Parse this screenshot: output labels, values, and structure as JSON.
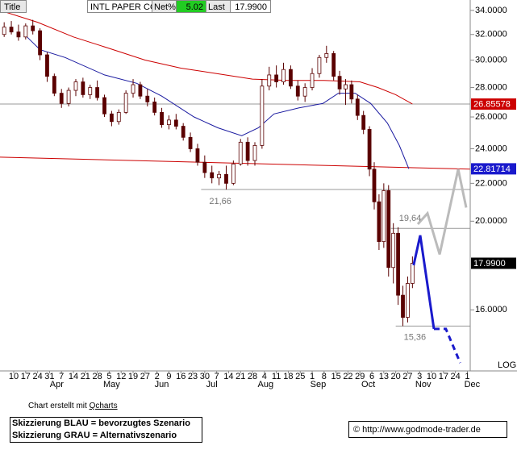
{
  "header": {
    "title": "Title",
    "name": "INTL PAPER CO",
    "net_label": "Net%",
    "net_value": "5.02",
    "last_label": "Last",
    "last_value": "17.9900"
  },
  "footer": {
    "credit": "Chart erstellt mit ",
    "credit_link": "Qcharts",
    "legend": [
      "Skizzierung BLAU = bevorzugtes Szenario",
      "Skizzierung GRAU = Alternativszenario"
    ],
    "copyright": "© http://www.godmode-trader.de"
  },
  "chart_data": {
    "type": "candlestick",
    "log": true,
    "log_label": "LOG",
    "xlim": [
      -1.15,
      38.24
    ],
    "ylim": [
      13.72,
      34.9
    ],
    "yticks": [
      {
        "value": 34,
        "label": "34.0000"
      },
      {
        "value": 32,
        "label": "32.0000"
      },
      {
        "value": 30,
        "label": "30.0000"
      },
      {
        "value": 28,
        "label": "28.0000"
      },
      {
        "value": 26,
        "label": "26.0000"
      },
      {
        "value": 24,
        "label": "24.0000"
      },
      {
        "value": 22,
        "label": "22.0000"
      },
      {
        "value": 20,
        "label": "20.0000"
      },
      {
        "value": 16,
        "label": "16.0000"
      }
    ],
    "xticks": [
      {
        "value": 0,
        "label": "10"
      },
      {
        "value": 1,
        "label": "17"
      },
      {
        "value": 2,
        "label": "24"
      },
      {
        "value": 3,
        "label": "31"
      },
      {
        "value": 4,
        "label": "7"
      },
      {
        "value": 5,
        "label": "14"
      },
      {
        "value": 6,
        "label": "21"
      },
      {
        "value": 7,
        "label": "28"
      },
      {
        "value": 8,
        "label": "5"
      },
      {
        "value": 9,
        "label": "12"
      },
      {
        "value": 10,
        "label": "19"
      },
      {
        "value": 11,
        "label": "27"
      },
      {
        "value": 12,
        "label": "2"
      },
      {
        "value": 13,
        "label": "9"
      },
      {
        "value": 14,
        "label": "16"
      },
      {
        "value": 15,
        "label": "23"
      },
      {
        "value": 16,
        "label": "30"
      },
      {
        "value": 17,
        "label": "7"
      },
      {
        "value": 18,
        "label": "14"
      },
      {
        "value": 19,
        "label": "21"
      },
      {
        "value": 20,
        "label": "28"
      },
      {
        "value": 21,
        "label": "4"
      },
      {
        "value": 22,
        "label": "11"
      },
      {
        "value": 23,
        "label": "18"
      },
      {
        "value": 24,
        "label": "25"
      },
      {
        "value": 25,
        "label": "1"
      },
      {
        "value": 26,
        "label": "8"
      },
      {
        "value": 27,
        "label": "15"
      },
      {
        "value": 28,
        "label": "22"
      },
      {
        "value": 29,
        "label": "29"
      },
      {
        "value": 30,
        "label": "6"
      },
      {
        "value": 31,
        "label": "13"
      },
      {
        "value": 32,
        "label": "20"
      },
      {
        "value": 33,
        "label": "27"
      },
      {
        "value": 34,
        "label": "3"
      },
      {
        "value": 35,
        "label": "10"
      },
      {
        "value": 36,
        "label": "17"
      },
      {
        "value": 37,
        "label": "24"
      },
      {
        "value": 38,
        "label": "1"
      }
    ],
    "months": [
      {
        "value": 3.6,
        "label": "Apr"
      },
      {
        "value": 8.2,
        "label": "May"
      },
      {
        "value": 12.4,
        "label": "Jun"
      },
      {
        "value": 16.6,
        "label": "Jul"
      },
      {
        "value": 21.1,
        "label": "Aug"
      },
      {
        "value": 25.5,
        "label": "Sep"
      },
      {
        "value": 29.7,
        "label": "Oct"
      },
      {
        "value": 34.3,
        "label": "Nov"
      },
      {
        "value": 38.4,
        "label": "Dec"
      }
    ],
    "x": [
      -0.8,
      -0.2,
      0.4,
      1.0,
      1.6,
      2.2,
      2.8,
      3.4,
      4.0,
      4.6,
      5.2,
      5.8,
      6.4,
      7.0,
      7.6,
      8.2,
      8.8,
      9.4,
      10.0,
      10.6,
      11.2,
      11.8,
      12.4,
      13.0,
      13.6,
      14.2,
      14.8,
      15.4,
      16.0,
      16.6,
      17.2,
      17.8,
      18.4,
      19.0,
      19.6,
      20.2,
      20.8,
      21.4,
      22.0,
      22.6,
      23.2,
      23.8,
      24.4,
      25.0,
      25.6,
      26.2,
      26.8,
      27.3,
      27.8,
      28.3,
      28.8,
      29.3,
      29.8,
      30.2,
      30.6,
      31.0,
      31.4,
      31.8,
      32.2,
      32.6,
      33.0,
      33.4
    ],
    "open": [
      32.0,
      32.6,
      32.2,
      31.8,
      32.7,
      32.3,
      30.4,
      28.8,
      27.6,
      26.9,
      27.8,
      28.4,
      27.5,
      28.0,
      27.3,
      26.2,
      25.7,
      26.3,
      27.6,
      28.2,
      27.4,
      27.0,
      26.3,
      25.5,
      25.8,
      25.4,
      24.7,
      24.0,
      23.2,
      22.6,
      22.3,
      22.5,
      22.0,
      23.1,
      24.4,
      23.3,
      24.2,
      28.1,
      28.9,
      28.4,
      29.3,
      28.1,
      27.4,
      28.0,
      29.0,
      30.2,
      30.5,
      28.8,
      27.9,
      28.2,
      27.2,
      26.1,
      25.2,
      22.8,
      21.0,
      19.0,
      21.6,
      17.8,
      19.4,
      16.6,
      15.7,
      17.1
    ],
    "high": [
      33.0,
      33.1,
      32.8,
      32.9,
      33.2,
      32.5,
      30.6,
      29.0,
      27.9,
      28.0,
      28.6,
      28.7,
      28.2,
      28.5,
      27.5,
      26.4,
      26.5,
      27.8,
      28.6,
      28.4,
      27.9,
      27.3,
      26.6,
      26.1,
      26.2,
      25.6,
      25.0,
      24.3,
      23.6,
      23.0,
      22.7,
      23.0,
      23.3,
      24.6,
      24.7,
      24.4,
      28.6,
      29.5,
      29.6,
      29.8,
      29.6,
      28.5,
      28.3,
      29.4,
      30.4,
      31.1,
      30.7,
      29.2,
      28.6,
      28.5,
      27.5,
      26.4,
      25.4,
      23.2,
      21.4,
      22.0,
      21.9,
      19.9,
      19.7,
      17.0,
      17.4,
      18.3
    ],
    "low": [
      31.8,
      32.0,
      31.5,
      31.6,
      32.0,
      30.0,
      28.4,
      27.4,
      26.6,
      26.7,
      27.4,
      27.3,
      27.2,
      27.1,
      26.0,
      25.4,
      25.5,
      26.2,
      27.3,
      27.2,
      26.7,
      26.1,
      25.3,
      25.2,
      25.2,
      24.5,
      23.8,
      23.0,
      22.3,
      22.0,
      21.9,
      21.66,
      21.9,
      23.0,
      23.0,
      23.0,
      24.0,
      27.8,
      28.0,
      28.2,
      27.9,
      27.1,
      27.0,
      27.8,
      28.7,
      29.8,
      28.5,
      27.5,
      26.8,
      26.9,
      25.8,
      24.9,
      22.4,
      20.6,
      18.6,
      18.7,
      17.4,
      17.1,
      16.2,
      15.36,
      15.5,
      16.9
    ],
    "close": [
      32.6,
      32.2,
      31.8,
      32.7,
      32.3,
      30.4,
      28.8,
      27.6,
      26.9,
      27.8,
      28.4,
      27.5,
      28.0,
      27.3,
      26.2,
      25.7,
      26.3,
      27.6,
      28.2,
      27.4,
      27.0,
      26.3,
      25.5,
      25.8,
      25.4,
      24.7,
      24.0,
      23.2,
      22.6,
      22.3,
      22.5,
      22.0,
      23.1,
      24.4,
      23.3,
      24.2,
      28.1,
      28.9,
      28.4,
      29.3,
      28.1,
      27.4,
      28.0,
      29.0,
      30.2,
      30.5,
      28.8,
      27.9,
      28.2,
      27.2,
      26.1,
      25.2,
      22.8,
      21.0,
      19.0,
      21.6,
      17.8,
      19.4,
      16.6,
      15.7,
      17.1,
      17.99
    ],
    "candle_color": "#5a0000",
    "levels": [
      {
        "value": 26.86,
        "from": -1.15
      },
      {
        "value": 21.66,
        "from": 15.7,
        "label": "21,66"
      },
      {
        "value": 19.64,
        "from": 31.6,
        "label": "19,64"
      },
      {
        "value": 15.36,
        "from": 32.0,
        "label": "15,36"
      }
    ],
    "level_color": "#999999",
    "lines": [
      {
        "color": "#cc0000",
        "width": 1,
        "x": [
          -1.15,
          38.24
        ],
        "values": [
          23.5,
          22.8
        ]
      },
      {
        "color": "#cc0000",
        "width": 1,
        "x": [
          -1.15,
          2,
          5,
          8,
          11,
          14,
          17,
          20,
          23,
          26,
          29,
          30.5,
          32,
          33.4
        ],
        "values": [
          34.0,
          33.0,
          31.8,
          30.9,
          30.0,
          29.4,
          29.0,
          28.6,
          28.5,
          28.5,
          28.4,
          28.0,
          27.5,
          26.86
        ]
      },
      {
        "color": "#1a1aa0",
        "width": 1,
        "x": [
          0.9,
          2.2,
          4.3,
          7.6,
          10.3,
          12.4,
          15.1,
          17.1,
          19.1,
          20.5,
          21.8,
          23.9,
          25.9,
          27.2,
          28.6,
          29.9,
          31.3,
          32.3,
          33.1
        ],
        "values": [
          32.0,
          30.8,
          30.2,
          28.9,
          28.3,
          27.4,
          26.0,
          25.3,
          24.8,
          25.3,
          26.2,
          26.6,
          26.9,
          27.6,
          27.6,
          26.9,
          25.6,
          24.2,
          22.82
        ]
      },
      {
        "color": "#bbbbbb",
        "width": 3,
        "x": [
          33.85,
          34.66,
          35.68,
          37.23,
          37.9
        ],
        "values": [
          19.85,
          20.4,
          18.4,
          22.8,
          20.7
        ]
      },
      {
        "color": "#1a1acc",
        "width": 3,
        "x": [
          33.5,
          34.05,
          35.2
        ],
        "values": [
          17.9,
          19.3,
          15.25
        ]
      },
      {
        "color": "#1a1acc",
        "width": 3,
        "dashed": true,
        "x": [
          35.2,
          36.2,
          37.4
        ],
        "values": [
          15.25,
          15.25,
          14.0
        ]
      }
    ],
    "price_tags": [
      {
        "value": 26.85578,
        "label": "26.85578",
        "color": "#cc0000"
      },
      {
        "value": 22.81714,
        "label": "22.81714",
        "color": "#1a1acc"
      },
      {
        "value": 17.99,
        "label": "17.9900",
        "color": "#000000"
      }
    ]
  }
}
